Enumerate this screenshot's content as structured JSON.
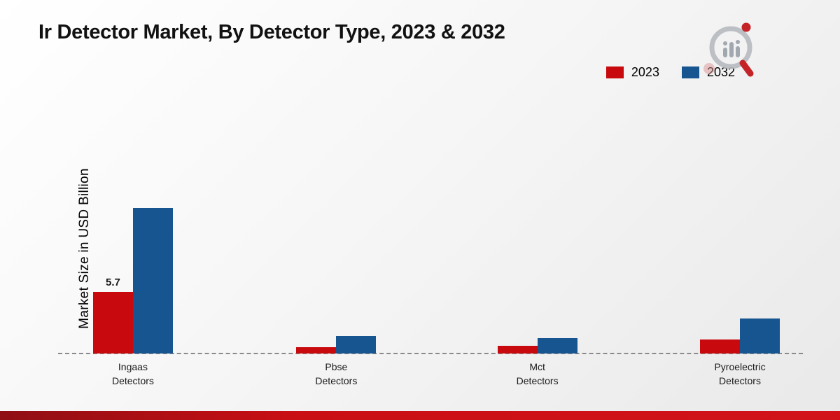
{
  "title": "Ir Detector Market, By Detector Type, 2023 & 2032",
  "y_axis_label": "Market Size in USD Billion",
  "legend": {
    "items": [
      {
        "label": "2023",
        "color": "#c8090d"
      },
      {
        "label": "2032",
        "color": "#16558f"
      }
    ]
  },
  "chart_data": {
    "type": "bar",
    "title": "Ir Detector Market, By Detector Type, 2023 & 2032",
    "xlabel": "",
    "ylabel": "Market Size in USD Billion",
    "categories": [
      "Ingaas Detectors",
      "Pbse Detectors",
      "Mct Detectors",
      "Pyroelectric Detectors"
    ],
    "series": [
      {
        "name": "2023",
        "color": "#c8090d",
        "values": [
          5.7,
          0.6,
          0.7,
          1.3
        ]
      },
      {
        "name": "2032",
        "color": "#16558f",
        "values": [
          13.4,
          1.6,
          1.4,
          3.2
        ]
      }
    ],
    "value_labels": [
      {
        "series_index": 0,
        "category_index": 0,
        "text": "5.7"
      }
    ],
    "ylim": [
      0,
      23.5
    ],
    "grid": false,
    "legend_position": "top-right",
    "baseline_style": "dashed",
    "group_centers_pct": [
      9.9,
      37.3,
      64.4,
      91.7
    ]
  }
}
